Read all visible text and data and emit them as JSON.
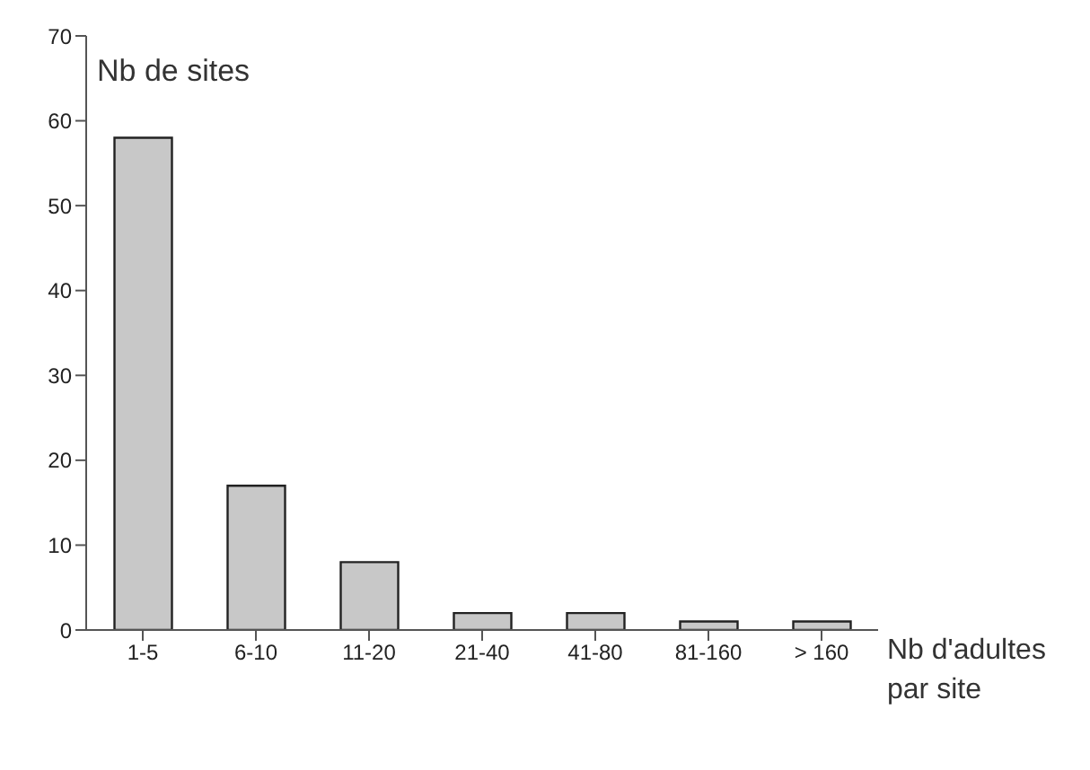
{
  "chart_data": {
    "type": "bar",
    "ylabel": "Nb de sites",
    "xlabel": "Nb d'adultes par site",
    "categories": [
      "1-5",
      "6-10",
      "11-20",
      "21-40",
      "41-80",
      "81-160",
      "> 160"
    ],
    "values": [
      58,
      17,
      8,
      2,
      2,
      1,
      1
    ],
    "color": "#c8c8c8",
    "ylim": [
      0,
      70
    ],
    "yticks": [
      0,
      10,
      20,
      30,
      40,
      50,
      60,
      70
    ],
    "grid": false
  }
}
